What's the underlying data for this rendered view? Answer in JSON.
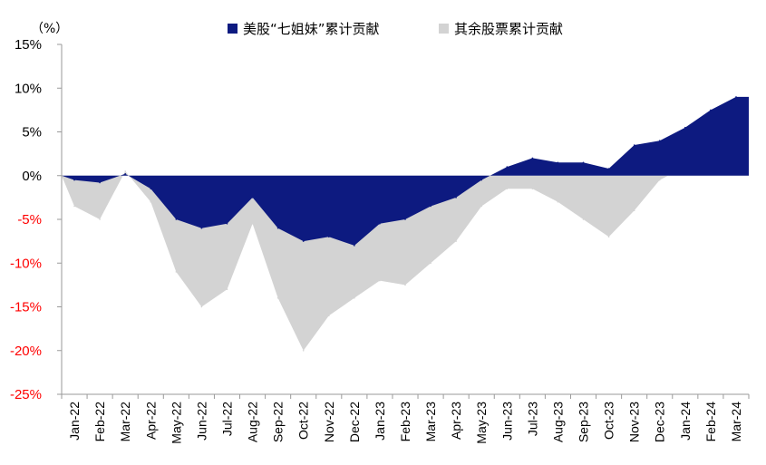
{
  "chart_data": {
    "type": "area",
    "y_unit_label": "（%）",
    "ylim": [
      -25,
      15
    ],
    "y_ticks": [
      15,
      10,
      5,
      0,
      -5,
      -10,
      -15,
      -20,
      -25
    ],
    "y_tick_labels": [
      "15%",
      "10%",
      "5%",
      "0%",
      "-5%",
      "-10%",
      "-15%",
      "-20%",
      "-25%"
    ],
    "x_tick_labels": [
      "Jan-22",
      "Feb-22",
      "Mar-22",
      "Apr-22",
      "May-22",
      "Jun-22",
      "Jul-22",
      "Aug-22",
      "Sep-22",
      "Oct-22",
      "Nov-22",
      "Dec-22",
      "Jan-23",
      "Feb-23",
      "Mar-23",
      "Apr-23",
      "May-23",
      "Jun-23",
      "Jul-23",
      "Aug-23",
      "Sep-23",
      "Oct-23",
      "Nov-23",
      "Dec-23",
      "Jan-24",
      "Feb-24",
      "Mar-24"
    ],
    "grid": false,
    "legend_position": "top",
    "series": [
      {
        "name": "美股“七姐妹”累计贡献",
        "color": "#0d1a80",
        "x": [
          "Jan-22",
          "Feb-22",
          "Mar-22",
          "Apr-22",
          "May-22",
          "Jun-22",
          "Jul-22",
          "Aug-22",
          "Sep-22",
          "Oct-22",
          "Nov-22",
          "Dec-22",
          "Jan-23",
          "Feb-23",
          "Mar-23",
          "Apr-23",
          "May-23",
          "Jun-23",
          "Jul-23",
          "Aug-23",
          "Sep-23",
          "Oct-23",
          "Nov-23",
          "Dec-23",
          "Jan-24",
          "Feb-24",
          "Mar-24"
        ],
        "values": [
          -0.5,
          -0.8,
          0.2,
          -1.5,
          -5.0,
          -6.0,
          -5.5,
          -2.5,
          -6.0,
          -7.5,
          -7.0,
          -8.0,
          -5.5,
          -5.0,
          -3.5,
          -2.5,
          -0.5,
          1.0,
          2.0,
          1.5,
          1.5,
          0.8,
          3.5,
          4.0,
          5.5,
          7.5,
          9.0
        ]
      },
      {
        "name": "其余股票累计贡献",
        "color": "#d3d3d3",
        "x": [
          "Jan-22",
          "Feb-22",
          "Mar-22",
          "Apr-22",
          "May-22",
          "Jun-22",
          "Jul-22",
          "Aug-22",
          "Sep-22",
          "Oct-22",
          "Nov-22",
          "Dec-22",
          "Jan-23",
          "Feb-23",
          "Mar-23",
          "Apr-23",
          "May-23",
          "Jun-23",
          "Jul-23",
          "Aug-23",
          "Sep-23",
          "Oct-23",
          "Nov-23",
          "Dec-23",
          "Jan-24",
          "Feb-24",
          "Mar-24"
        ],
        "values": [
          -3.5,
          -5.0,
          0.5,
          -3.0,
          -11.0,
          -15.0,
          -13.0,
          -5.5,
          -14.0,
          -20.0,
          -16.0,
          -14.0,
          -12.0,
          -12.5,
          -10.0,
          -7.5,
          -3.5,
          -1.5,
          -1.5,
          -3.0,
          -5.0,
          -7.0,
          -4.0,
          -0.5,
          1.0,
          4.0,
          6.0
        ]
      }
    ]
  }
}
